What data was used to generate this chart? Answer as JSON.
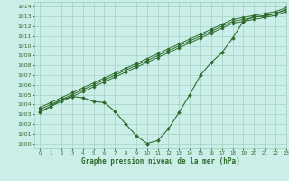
{
  "xlabel": "Graphe pression niveau de la mer (hPa)",
  "bg_color": "#cceee8",
  "grid_color": "#99ccbb",
  "line_color": "#2d6a2d",
  "xlim": [
    -0.5,
    23
  ],
  "ylim": [
    999.5,
    1014.5
  ],
  "yticks": [
    1000,
    1001,
    1002,
    1003,
    1004,
    1005,
    1006,
    1007,
    1008,
    1009,
    1010,
    1011,
    1012,
    1013,
    1014
  ],
  "xticks": [
    0,
    1,
    2,
    3,
    4,
    5,
    6,
    7,
    8,
    9,
    10,
    11,
    12,
    13,
    14,
    15,
    16,
    17,
    18,
    19,
    20,
    21,
    22,
    23
  ],
  "series_wavy": [
    1003.2,
    1003.8,
    1004.5,
    1004.8,
    1004.7,
    1004.3,
    1004.2,
    1003.3,
    1002.0,
    1000.8,
    1000.0,
    1000.3,
    1001.5,
    1003.2,
    1005.0,
    1007.0,
    1008.3,
    1009.3,
    1010.8,
    1012.5,
    1013.0,
    1013.0,
    1013.3,
    1013.7
  ],
  "series_straight": [
    [
      1003.3,
      1003.8,
      1004.3,
      1004.8,
      1005.3,
      1005.8,
      1006.3,
      1006.8,
      1007.3,
      1007.8,
      1008.3,
      1008.8,
      1009.3,
      1009.8,
      1010.3,
      1010.8,
      1011.3,
      1011.8,
      1012.3,
      1012.5,
      1012.7,
      1012.9,
      1013.1,
      1013.5
    ],
    [
      1003.5,
      1004.0,
      1004.5,
      1005.0,
      1005.5,
      1006.0,
      1006.5,
      1007.0,
      1007.5,
      1008.0,
      1008.5,
      1009.0,
      1009.5,
      1010.0,
      1010.5,
      1011.0,
      1011.5,
      1012.0,
      1012.5,
      1012.7,
      1012.9,
      1013.1,
      1013.3,
      1013.7
    ],
    [
      1003.7,
      1004.2,
      1004.7,
      1005.2,
      1005.7,
      1006.2,
      1006.7,
      1007.2,
      1007.7,
      1008.2,
      1008.7,
      1009.2,
      1009.7,
      1010.2,
      1010.7,
      1011.2,
      1011.7,
      1012.2,
      1012.7,
      1012.9,
      1013.1,
      1013.3,
      1013.5,
      1013.9
    ]
  ]
}
